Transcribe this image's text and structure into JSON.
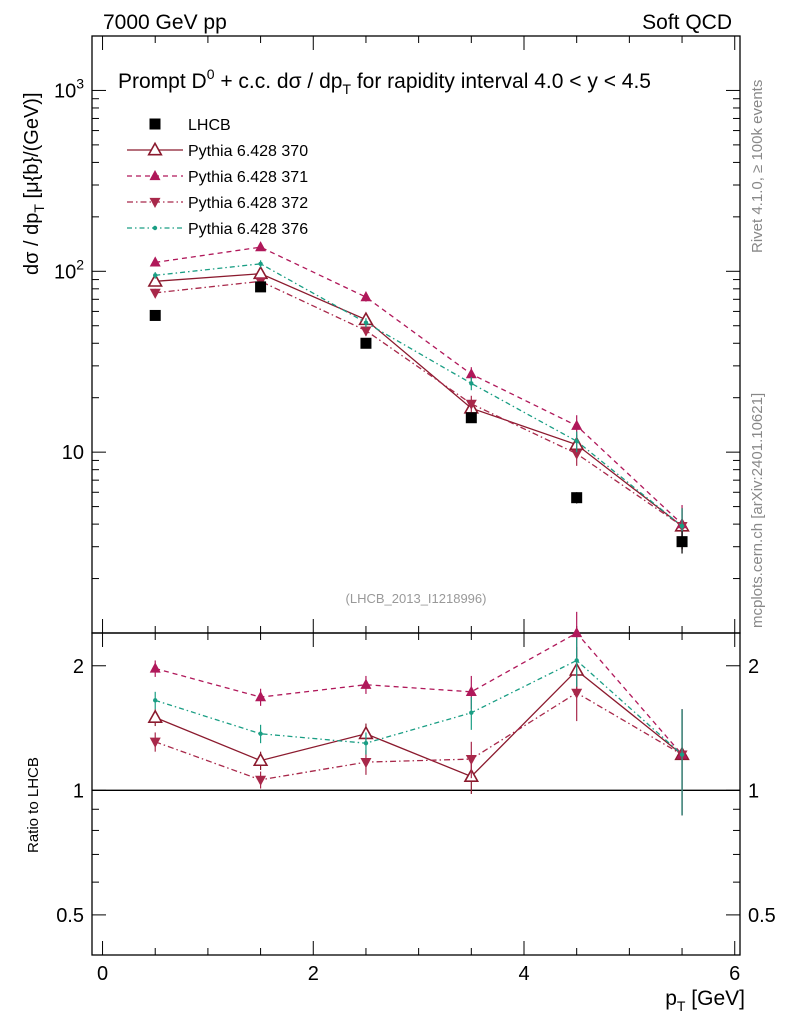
{
  "header": {
    "left": "7000 GeV pp",
    "right": "Soft QCD"
  },
  "title": {
    "main": "Prompt D",
    "sup": "0",
    "rest": " + c.c.  dσ / dp",
    "sub": "T",
    "tail": " for rapidity interval 4.0 < y < 4.5"
  },
  "side": {
    "rivet": "Rivet 4.1.0, ≥ 100k events",
    "mcplots": "mcplots.cern.ch [arXiv:2401.10621]"
  },
  "analysis_id": "(LHCB_2013_I1218996)",
  "axes": {
    "ylabel_main": "dσ / dp",
    "ylabel_sub": "T",
    "ylabel_rest": " [μ{b}/(GeV)]",
    "ylabel_ratio": "Ratio to LHCB",
    "xlabel": "p",
    "xlabel_sub": "T",
    "xlabel_rest": " [GeV]"
  },
  "chart_data": [
    {
      "type": "scatter",
      "panel": "main",
      "title": "Prompt D0 + c.c. dσ / dpT for rapidity interval 4.0 < y < 4.5",
      "xlabel": "pT [GeV]",
      "ylabel": "dσ / dpT [μ{b}/(GeV)]",
      "yscale": "log",
      "xlim": [
        -0.1,
        6.05
      ],
      "ylim": [
        1.0,
        2000
      ],
      "x_ticks": [
        "0",
        "2",
        "4",
        "6"
      ],
      "y_ticks": [
        "10",
        "10^2",
        "10^3"
      ],
      "x": [
        0.5,
        1.5,
        2.5,
        3.5,
        4.5,
        5.5
      ],
      "legend_position": "top-left",
      "series": [
        {
          "name": "LHCB",
          "values": [
            57,
            82,
            40,
            15.5,
            5.6,
            3.2
          ],
          "errors": [
            3,
            4,
            2,
            1,
            0.4,
            0.45
          ],
          "color": "#000000",
          "marker": "square",
          "dash": "none"
        },
        {
          "name": "Pythia 6.428 370",
          "values": [
            88,
            97,
            54,
            17.5,
            11,
            3.9
          ],
          "errors": [
            4,
            5,
            3,
            1.5,
            1.5,
            1.0
          ],
          "color": "#8b1a2e",
          "marker": "triangle-open",
          "dash": "solid"
        },
        {
          "name": "Pythia 6.428 371",
          "values": [
            112,
            136,
            72,
            27,
            14,
            4.0
          ],
          "errors": [
            5,
            5,
            4,
            2.5,
            2.0,
            1.1
          ],
          "color": "#b0185a",
          "marker": "triangle-up",
          "dash": "5,4"
        },
        {
          "name": "Pythia 6.428 372",
          "values": [
            76,
            88,
            47,
            18.5,
            9.8,
            3.9
          ],
          "errors": [
            4,
            4,
            3,
            2,
            1.4,
            1.0
          ],
          "color": "#a8284a",
          "marker": "triangle-down",
          "dash": "6,3,1.5,3"
        },
        {
          "name": "Pythia 6.428 376",
          "values": [
            95,
            110,
            52,
            24,
            11.5,
            3.9
          ],
          "errors": [
            4,
            5,
            3,
            2,
            1.5,
            1.0
          ],
          "color": "#1a9e84",
          "marker": "dot",
          "dash": "5,3,1.5,3"
        }
      ]
    },
    {
      "type": "line",
      "panel": "ratio",
      "ylabel": "Ratio to LHCB",
      "xlabel": "pT [GeV]",
      "yscale": "log",
      "ylim": [
        0.4,
        2.4
      ],
      "y_ticks": [
        "0.5",
        "1",
        "2"
      ],
      "x": [
        0.5,
        1.5,
        2.5,
        3.5,
        4.5,
        5.5
      ],
      "series": [
        {
          "name": "Pythia 6.428 370",
          "values": [
            1.5,
            1.18,
            1.37,
            1.08,
            1.95,
            1.22
          ],
          "errors": [
            0.07,
            0.06,
            0.08,
            0.1,
            0.27,
            0.35
          ],
          "color": "#8b1a2e",
          "marker": "triangle-open",
          "dash": "solid"
        },
        {
          "name": "Pythia 6.428 371",
          "values": [
            1.97,
            1.68,
            1.8,
            1.73,
            2.4,
            1.22
          ],
          "errors": [
            0.09,
            0.08,
            0.09,
            0.16,
            0.3,
            0.35
          ],
          "color": "#b0185a",
          "marker": "triangle-up",
          "dash": "5,4"
        },
        {
          "name": "Pythia 6.428 372",
          "values": [
            1.31,
            1.06,
            1.17,
            1.19,
            1.72,
            1.22
          ],
          "errors": [
            0.07,
            0.05,
            0.08,
            0.12,
            0.25,
            0.35
          ],
          "color": "#a8284a",
          "marker": "triangle-down",
          "dash": "6,3,1.5,3"
        },
        {
          "name": "Pythia 6.428 376",
          "values": [
            1.65,
            1.37,
            1.3,
            1.54,
            2.06,
            1.22
          ],
          "errors": [
            0.08,
            0.07,
            0.08,
            0.14,
            0.28,
            0.35
          ],
          "color": "#1a9e84",
          "marker": "dot",
          "dash": "5,3,1.5,3"
        }
      ]
    }
  ]
}
